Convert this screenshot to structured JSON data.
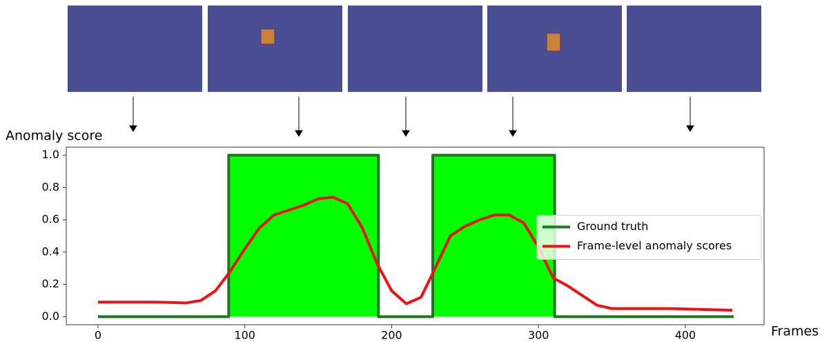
{
  "chart_data": {
    "type": "line",
    "y_label": "Anomaly score",
    "x_label": "Frames",
    "xlim": [
      -21.6,
      453.6
    ],
    "xticks": [
      0,
      100,
      200,
      300,
      400
    ],
    "ylim": [
      -0.05,
      1.05
    ],
    "yticks": [
      {
        "value": 0,
        "label": "0.0"
      },
      {
        "value": 0.2,
        "label": "0.2"
      },
      {
        "value": 0.4,
        "label": "0.4"
      },
      {
        "value": 0.6,
        "label": "0.6"
      },
      {
        "value": 0.8,
        "label": "0.8"
      },
      {
        "value": 1,
        "label": "1.0"
      }
    ],
    "legend": "center right",
    "series": [
      {
        "name": "Ground truth",
        "color": "#1a7a1a",
        "fill": "#00ff00",
        "x": [
          0,
          89,
          89,
          191,
          191,
          228,
          228,
          311,
          311,
          433
        ],
        "values": [
          0,
          0,
          1,
          1,
          0,
          0,
          1,
          1,
          0,
          0
        ]
      },
      {
        "name": "Frame-level anomaly scores",
        "color": "#ee1111",
        "x": [
          0,
          20,
          40,
          60,
          70,
          80,
          90,
          100,
          110,
          120,
          130,
          140,
          150,
          160,
          170,
          180,
          190,
          200,
          210,
          220,
          228,
          240,
          250,
          260,
          270,
          280,
          290,
          300,
          310,
          320,
          330,
          340,
          350,
          370,
          390,
          410,
          432
        ],
        "values": [
          0.09,
          0.09,
          0.09,
          0.085,
          0.1,
          0.16,
          0.28,
          0.42,
          0.55,
          0.63,
          0.66,
          0.69,
          0.73,
          0.74,
          0.7,
          0.55,
          0.33,
          0.16,
          0.08,
          0.12,
          0.27,
          0.5,
          0.56,
          0.6,
          0.63,
          0.63,
          0.58,
          0.43,
          0.24,
          0.19,
          0.13,
          0.07,
          0.05,
          0.05,
          0.05,
          0.045,
          0.04
        ]
      }
    ]
  }
}
